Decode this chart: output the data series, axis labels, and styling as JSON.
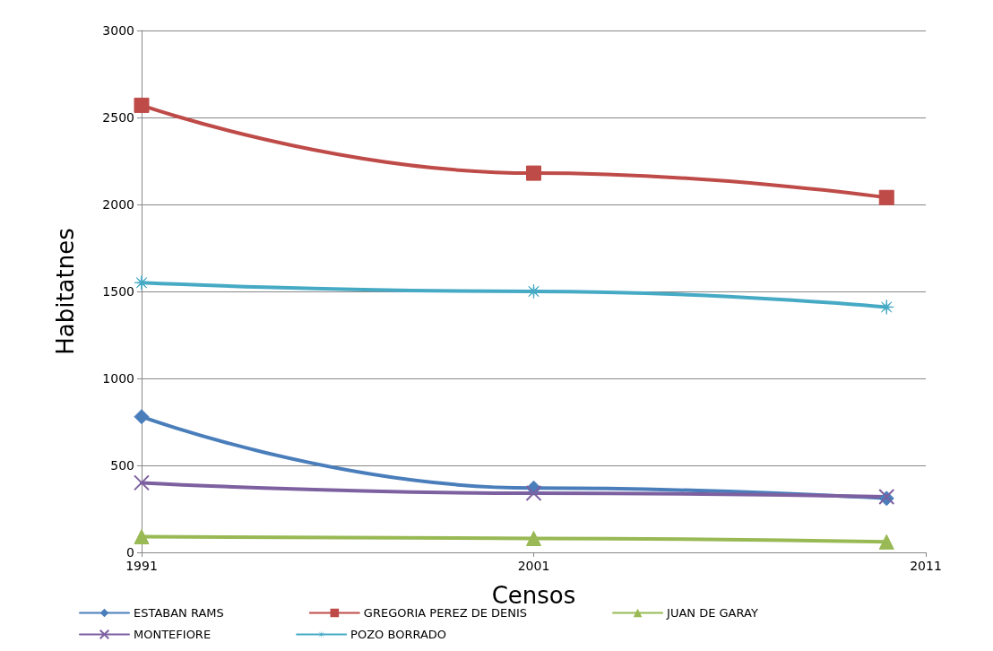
{
  "chart_data": {
    "type": "line",
    "xlabel": "Censos",
    "ylabel": "Habitatnes",
    "x": [
      1991,
      2001,
      2010
    ],
    "xlim": [
      1991,
      2011
    ],
    "xticks": [
      1991,
      2001,
      2011
    ],
    "ylim": [
      0,
      3000
    ],
    "yticks": [
      0,
      500,
      1000,
      1500,
      2000,
      2500,
      3000
    ],
    "grid": "y",
    "legend": "bottom",
    "series": [
      {
        "name": "ESTABAN RAMS",
        "color": "#4a7ebb",
        "marker": "diamond",
        "values": [
          780,
          370,
          310
        ]
      },
      {
        "name": "GREGORIA PEREZ DE DENIS",
        "color": "#be4b48",
        "marker": "square",
        "values": [
          2570,
          2180,
          2040
        ]
      },
      {
        "name": "JUAN DE GARAY",
        "color": "#98b954",
        "marker": "triangle",
        "values": [
          90,
          80,
          60
        ]
      },
      {
        "name": "MONTEFIORE",
        "color": "#7d60a0",
        "marker": "cross",
        "values": [
          400,
          340,
          320
        ]
      },
      {
        "name": "POZO BORRADO",
        "color": "#46aac5",
        "marker": "star",
        "values": [
          1550,
          1500,
          1410
        ]
      }
    ]
  }
}
